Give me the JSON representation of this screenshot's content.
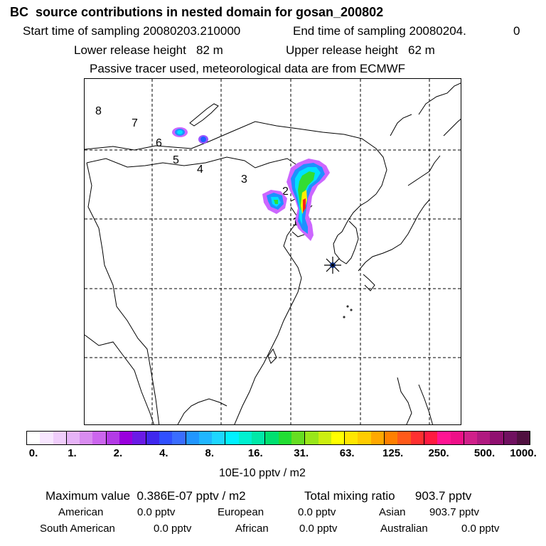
{
  "header": {
    "title": "BC  source contributions in nested domain for gosan_200802",
    "start_label": "Start time of sampling",
    "start_value": "20080203.210000",
    "end_label": "End time of sampling",
    "end_value": "20080204.",
    "end_suffix": "0",
    "lower_label": "Lower release height",
    "lower_value": "82 m",
    "upper_label": "Upper release height",
    "upper_value": "62 m",
    "note": "Passive tracer used, meteorological data are from ECMWF"
  },
  "map": {
    "region_labels": [
      "8",
      "7",
      "6",
      "5",
      "4",
      "3",
      "2",
      "1"
    ],
    "receptor_marker": "asterisk-receptor-icon",
    "plume_colors": {
      "low": "#cc66ff",
      "mid_low": "#1e90ff",
      "mid": "#00e0ff",
      "mid_high": "#33dd33",
      "high": "#ffee00",
      "peak": "#ff2020"
    }
  },
  "colorbar": {
    "segment_colors": [
      "#ffffff",
      "#f8e6ff",
      "#f0cdfb",
      "#e6b3f7",
      "#d98cf0",
      "#cc66ee",
      "#b33be6",
      "#9900dd",
      "#6a1be6",
      "#4028ee",
      "#3050ff",
      "#3a6dff",
      "#2196ff",
      "#20b6ff",
      "#1ed6ff",
      "#00f0ff",
      "#00f0d0",
      "#00e8a8",
      "#00e070",
      "#22dd33",
      "#66dd22",
      "#99e61a",
      "#ccee10",
      "#ffff00",
      "#ffe600",
      "#ffcc00",
      "#ffa800",
      "#ff8000",
      "#ff5a1a",
      "#ff3030",
      "#ff1a40",
      "#ff1493",
      "#ee1088",
      "#d0208a",
      "#b01a80",
      "#901070",
      "#701060",
      "#501040"
    ],
    "tick_labels": [
      "0.",
      "1.",
      "2.",
      "4.",
      "8.",
      "16.",
      "31.",
      "63.",
      "125.",
      "250.",
      "500.",
      "1000."
    ],
    "units": "10E-10 pptv / m2"
  },
  "stats": {
    "max_label": "Maximum value",
    "max_value": "0.386E-07 pptv / m2",
    "total_label": "Total mixing ratio",
    "total_value": "903.7 pptv",
    "american_label": "American",
    "american_value": "0.0 pptv",
    "european_label": "European",
    "european_value": "0.0 pptv",
    "asian_label": "Asian",
    "asian_value": "903.7 pptv",
    "south_american_label": "South American",
    "south_american_value": "0.0 pptv",
    "african_label": "African",
    "african_value": "0.0 pptv",
    "australian_label": "Australian",
    "australian_value": "0.0 pptv"
  }
}
